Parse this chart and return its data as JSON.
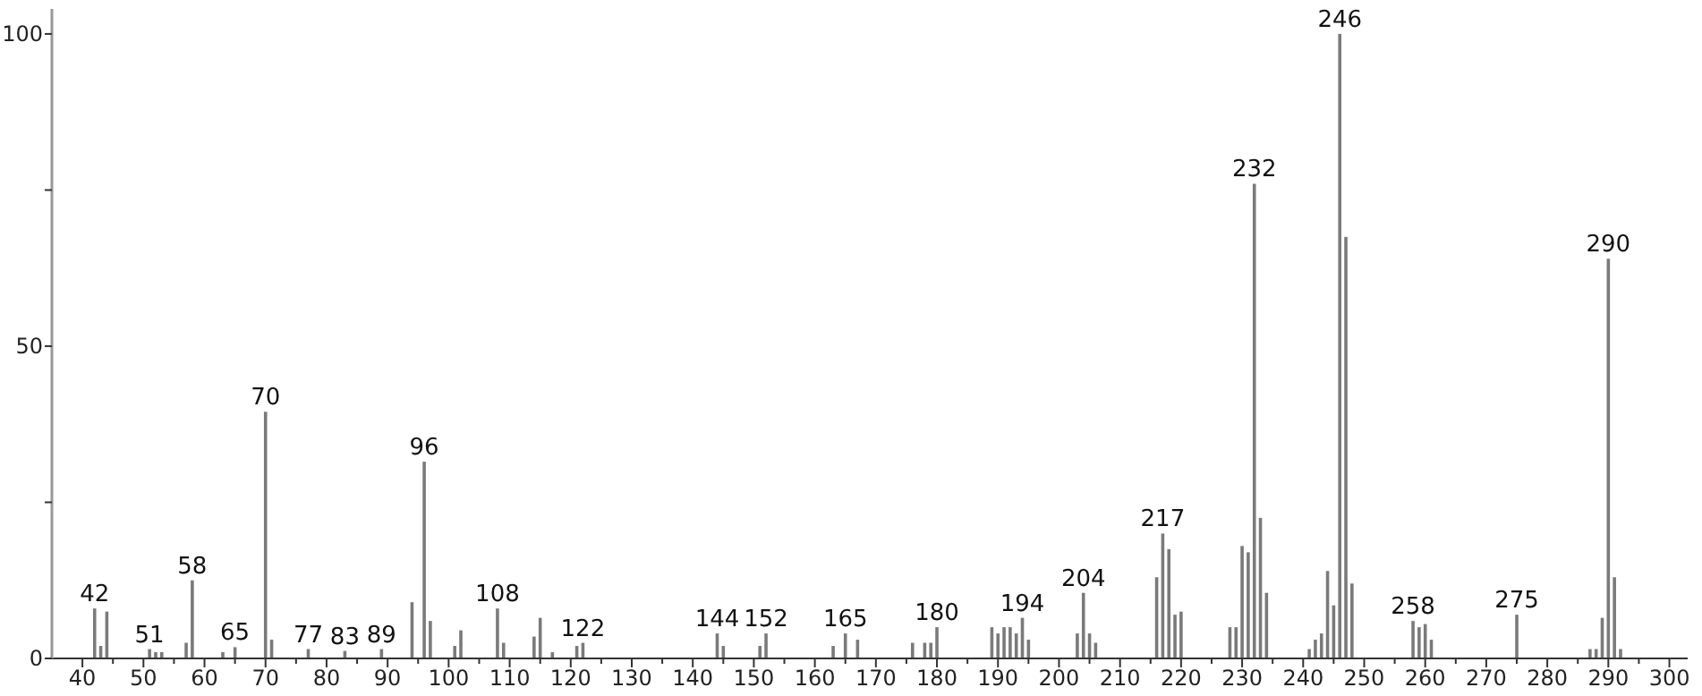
{
  "chart_data": {
    "type": "bar",
    "color": "#7a7a7a",
    "x": [
      42,
      43,
      44,
      51,
      52,
      53,
      57,
      58,
      63,
      65,
      70,
      71,
      77,
      83,
      89,
      94,
      96,
      97,
      101,
      102,
      108,
      109,
      114,
      115,
      117,
      121,
      122,
      144,
      145,
      151,
      152,
      163,
      165,
      167,
      176,
      178,
      179,
      180,
      189,
      190,
      191,
      192,
      193,
      194,
      195,
      203,
      204,
      205,
      206,
      216,
      217,
      218,
      219,
      220,
      228,
      229,
      230,
      231,
      232,
      233,
      234,
      241,
      242,
      243,
      244,
      245,
      246,
      247,
      248,
      258,
      259,
      260,
      261,
      275,
      287,
      288,
      289,
      290,
      291,
      292
    ],
    "values": [
      8,
      2,
      7.5,
      1.5,
      1,
      1,
      2.5,
      12.5,
      1,
      1.8,
      39.5,
      3,
      1.5,
      1.2,
      1.5,
      9,
      31.5,
      6,
      2,
      4.5,
      8,
      2.5,
      3.5,
      6.5,
      1,
      2,
      2.5,
      4,
      2,
      2,
      4,
      2,
      4,
      3,
      2.5,
      2.5,
      2.5,
      5,
      5,
      4,
      5,
      5,
      4,
      6.5,
      3,
      4,
      10.5,
      4,
      2.5,
      13,
      20,
      17.5,
      7,
      7.5,
      5,
      5,
      18,
      17,
      76,
      22.5,
      10.5,
      1.5,
      3,
      4,
      14,
      8.5,
      100,
      67.5,
      12,
      6,
      5,
      5.5,
      3,
      7,
      1.5,
      1.5,
      6.5,
      64,
      13,
      1.5
    ],
    "annotations": [
      {
        "text": "42",
        "x": 42,
        "y": 8
      },
      {
        "text": "51",
        "x": 51,
        "y": 1.5
      },
      {
        "text": "58",
        "x": 58,
        "y": 12.5
      },
      {
        "text": "65",
        "x": 65,
        "y": 1.8
      },
      {
        "text": "70",
        "x": 70,
        "y": 39.5
      },
      {
        "text": "77",
        "x": 77,
        "y": 1.5
      },
      {
        "text": "83",
        "x": 83,
        "y": 1.2
      },
      {
        "text": "89",
        "x": 89,
        "y": 1.5
      },
      {
        "text": "96",
        "x": 96,
        "y": 31.5
      },
      {
        "text": "108",
        "x": 108,
        "y": 8
      },
      {
        "text": "122",
        "x": 122,
        "y": 2.5
      },
      {
        "text": "144",
        "x": 144,
        "y": 4
      },
      {
        "text": "152",
        "x": 152,
        "y": 4
      },
      {
        "text": "165",
        "x": 165,
        "y": 4
      },
      {
        "text": "180",
        "x": 180,
        "y": 5
      },
      {
        "text": "194",
        "x": 194,
        "y": 6.5
      },
      {
        "text": "204",
        "x": 204,
        "y": 10.5
      },
      {
        "text": "217",
        "x": 217,
        "y": 20
      },
      {
        "text": "232",
        "x": 232,
        "y": 76
      },
      {
        "text": "246",
        "x": 246,
        "y": 100
      },
      {
        "text": "258",
        "x": 258,
        "y": 6
      },
      {
        "text": "275",
        "x": 275,
        "y": 7
      },
      {
        "text": "290",
        "x": 290,
        "y": 64
      }
    ],
    "xlim": [
      35,
      303
    ],
    "xticks": [
      40,
      {
        "value": 45,
        "label": null
      },
      50,
      {
        "value": 55,
        "label": null
      },
      60,
      {
        "value": 65,
        "label": null
      },
      70,
      {
        "value": 75,
        "label": null
      },
      80,
      {
        "value": 85,
        "label": null
      },
      90,
      {
        "value": 95,
        "label": null
      },
      100,
      {
        "value": 105,
        "label": null
      },
      110,
      {
        "value": 115,
        "label": null
      },
      120,
      {
        "value": 125,
        "label": null
      },
      130,
      {
        "value": 135,
        "label": null
      },
      140,
      {
        "value": 145,
        "label": null
      },
      150,
      {
        "value": 155,
        "label": null
      },
      160,
      {
        "value": 165,
        "label": null
      },
      170,
      {
        "value": 175,
        "label": null
      },
      180,
      {
        "value": 185,
        "label": null
      },
      190,
      {
        "value": 195,
        "label": null
      },
      200,
      {
        "value": 205,
        "label": null
      },
      210,
      {
        "value": 215,
        "label": null
      },
      220,
      {
        "value": 225,
        "label": null
      },
      230,
      {
        "value": 235,
        "label": null
      },
      240,
      {
        "value": 245,
        "label": null
      },
      250,
      {
        "value": 255,
        "label": null
      },
      260,
      {
        "value": 265,
        "label": null
      },
      270,
      {
        "value": 275,
        "label": null
      },
      280,
      {
        "value": 285,
        "label": null
      },
      290,
      {
        "value": 295,
        "label": null
      },
      300
    ],
    "ylim": [
      0,
      104
    ],
    "yticks": [
      0,
      {
        "value": 25,
        "label": null
      },
      50,
      {
        "value": 75,
        "label": null
      },
      100
    ]
  }
}
